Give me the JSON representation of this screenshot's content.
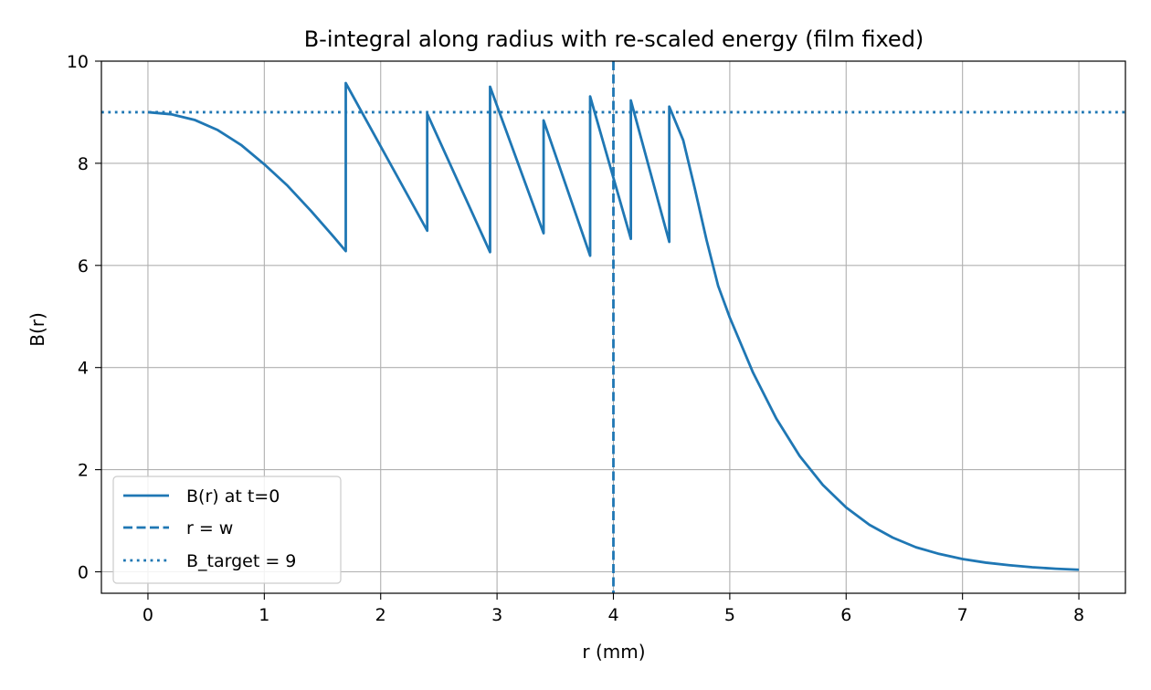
{
  "chart_data": {
    "type": "line",
    "title": "B-integral along radius with re-scaled energy (film fixed)",
    "xlabel": "r (mm)",
    "ylabel": "B(r)",
    "xlim": [
      -0.4,
      8.4
    ],
    "ylim": [
      -0.42,
      10.0
    ],
    "xticks": [
      0,
      1,
      2,
      3,
      4,
      5,
      6,
      7,
      8
    ],
    "yticks": [
      0,
      2,
      4,
      6,
      8,
      10
    ],
    "grid": true,
    "legend_position": "lower-left",
    "colors": {
      "line": "#1f77b4",
      "grid": "#b0b0b0"
    },
    "series": [
      {
        "name": "B(r) at t=0",
        "style": "solid",
        "points": [
          [
            0.0,
            9.0
          ],
          [
            0.2,
            8.96
          ],
          [
            0.4,
            8.85
          ],
          [
            0.6,
            8.65
          ],
          [
            0.8,
            8.36
          ],
          [
            1.0,
            7.98
          ],
          [
            1.2,
            7.56
          ],
          [
            1.4,
            7.07
          ],
          [
            1.6,
            6.55
          ],
          [
            1.7,
            6.28
          ],
          [
            1.7,
            9.57
          ],
          [
            2.4,
            6.68
          ],
          [
            2.4,
            8.97
          ],
          [
            2.94,
            6.26
          ],
          [
            2.94,
            9.5
          ],
          [
            3.4,
            6.63
          ],
          [
            3.4,
            8.84
          ],
          [
            3.8,
            6.19
          ],
          [
            3.8,
            9.31
          ],
          [
            4.15,
            6.52
          ],
          [
            4.15,
            9.23
          ],
          [
            4.48,
            6.46
          ],
          [
            4.48,
            9.11
          ],
          [
            4.6,
            8.45
          ],
          [
            4.7,
            7.5
          ],
          [
            4.8,
            6.5
          ],
          [
            4.9,
            5.6
          ],
          [
            5.0,
            4.98
          ],
          [
            5.2,
            3.9
          ],
          [
            5.4,
            3.0
          ],
          [
            5.6,
            2.27
          ],
          [
            5.8,
            1.7
          ],
          [
            6.0,
            1.26
          ],
          [
            6.2,
            0.92
          ],
          [
            6.4,
            0.67
          ],
          [
            6.6,
            0.48
          ],
          [
            6.8,
            0.35
          ],
          [
            7.0,
            0.25
          ],
          [
            7.2,
            0.18
          ],
          [
            7.4,
            0.13
          ],
          [
            7.6,
            0.09
          ],
          [
            7.8,
            0.06
          ],
          [
            8.0,
            0.04
          ]
        ]
      },
      {
        "name": "r = w",
        "style": "dashed",
        "orientation": "vertical",
        "x": 4.0
      },
      {
        "name": "B_target = 9",
        "style": "dotted",
        "orientation": "horizontal",
        "y": 9.0
      }
    ]
  }
}
